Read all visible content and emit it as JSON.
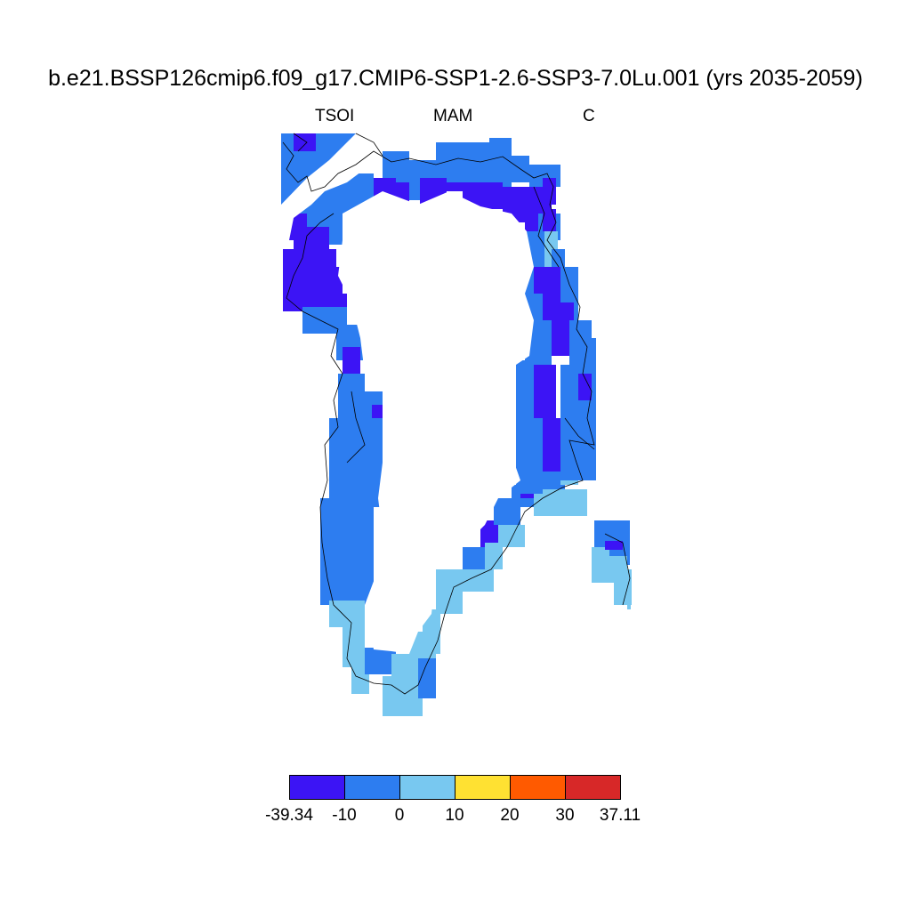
{
  "title": "b.e21.BSSP126cmip6.f09_g17.CMIP6-SSP1-2.6-SSP3-7.0Lu.001 (yrs 2035-2059)",
  "variable": "TSOI",
  "season": "MAM",
  "units": "C",
  "colorbar": {
    "colors": [
      "#3c14f5",
      "#2d7df0",
      "#78c8f0",
      "#ffe132",
      "#ff5a00",
      "#d72828"
    ],
    "labels": [
      "-39.34",
      "-10",
      "0",
      "10",
      "20",
      "30",
      "37.11"
    ]
  },
  "map": {
    "region": "Greenland",
    "coastline_color": "#000000",
    "background_color": "#ffffff",
    "interior_masked": true
  }
}
